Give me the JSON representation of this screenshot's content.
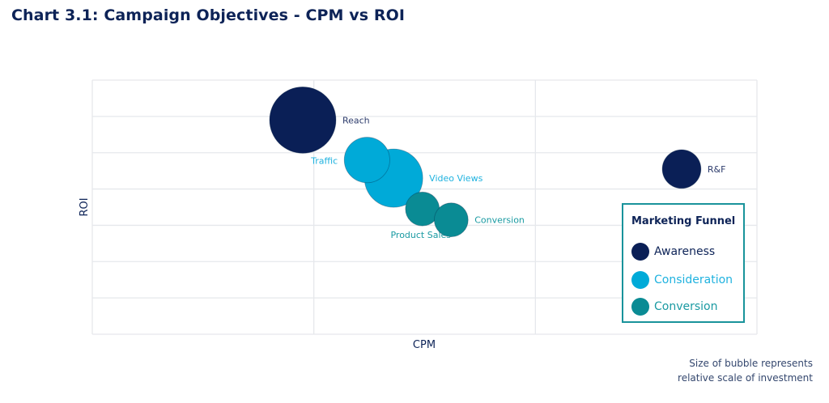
{
  "title": "Chart 3.1: Campaign Objectives - CPM vs ROI",
  "footnote": [
    "Size of bubble represents",
    "relative scale of investment"
  ],
  "colors": {
    "Awareness": "#0a1f56",
    "Consideration": "#00aad8",
    "Conversion": "#0a8b94"
  },
  "label_colors": {
    "Awareness": "#2d3c6c",
    "Consideration": "#1fb2df",
    "Conversion": "#1a9aa2"
  },
  "chart_data": {
    "type": "bubble",
    "title": "Chart 3.1: Campaign Objectives - CPM vs ROI",
    "xlabel": "CPM",
    "ylabel": "ROI",
    "xlim": [
      0,
      3
    ],
    "ylim": [
      0,
      7
    ],
    "x_ticks_labeled": false,
    "y_ticks_labeled": false,
    "grid": true,
    "legend": {
      "title": "Marketing Funnel",
      "placement": "bottom-right",
      "entries": [
        "Awareness",
        "Consideration",
        "Conversion"
      ]
    },
    "points": [
      {
        "label": "Reach",
        "category": "Awareness",
        "x": 0.95,
        "y": 5.9,
        "size": 100
      },
      {
        "label": "Video Views",
        "category": "Consideration",
        "x": 1.36,
        "y": 4.3,
        "size": 77
      },
      {
        "label": "Traffic",
        "category": "Consideration",
        "x": 1.24,
        "y": 4.8,
        "size": 47
      },
      {
        "label": "Product Sales",
        "category": "Conversion",
        "x": 1.49,
        "y": 3.45,
        "size": 26
      },
      {
        "label": "Conversion",
        "category": "Conversion",
        "x": 1.62,
        "y": 3.15,
        "size": 26
      },
      {
        "label": "R&F",
        "category": "Awareness",
        "x": 2.66,
        "y": 4.55,
        "size": 34
      }
    ]
  }
}
